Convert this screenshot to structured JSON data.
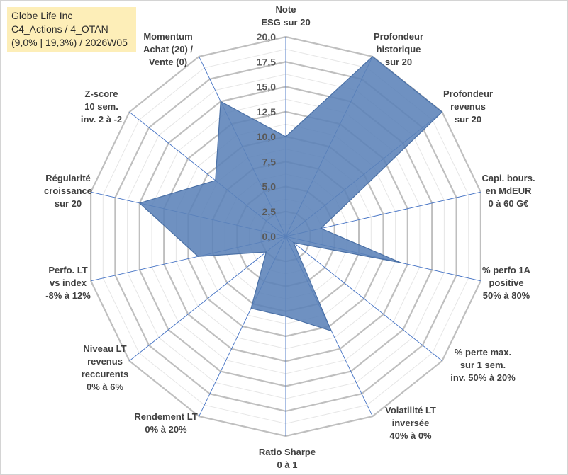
{
  "header": {
    "line1": "Globe Life Inc",
    "line2": "C4_Actions / 4_OTAN",
    "line3": "(9,0% | 19,3%) / 2026W05"
  },
  "colors": {
    "fill": "#5b82b8",
    "stroke": "#4a70a6",
    "grid_major": "#bfbfbf",
    "grid_minor": "#e6e6e6",
    "spoke": "#4472c4"
  },
  "chart_data": {
    "type": "radar",
    "rmin": 0,
    "rmax": 20,
    "ticks": [
      "0,0",
      "2,5",
      "5,0",
      "7,5",
      "10,0",
      "12,5",
      "15,0",
      "17,5",
      "20,0"
    ],
    "categories": [
      [
        "Note",
        "ESG sur 20"
      ],
      [
        "Profondeur",
        "historique",
        "sur 20"
      ],
      [
        "Profondeur",
        "revenus",
        "sur 20"
      ],
      [
        "Capi. bours.",
        "en MdEUR",
        "0 à 60 G€"
      ],
      [
        "% perfo 1A",
        "positive",
        "50% à 80%"
      ],
      [
        "% perte max.",
        "sur 1 sem.",
        "inv. 50% à 20%"
      ],
      [
        "Volatilité LT",
        "inversée",
        "40% à 0%"
      ],
      [
        "Ratio Sharpe",
        "0 à 1"
      ],
      [
        "Rendement LT",
        "0% à 20%"
      ],
      [
        "Niveau LT",
        "revenus",
        "reccurents",
        "0% à 6%"
      ],
      [
        "Perfo. LT",
        "vs index",
        "-8% à 12%"
      ],
      [
        "Régularité",
        "croissance",
        "sur 20"
      ],
      [
        "Z-score",
        "10 sem.",
        "inv. 2 à -2"
      ],
      [
        "Momentum",
        "Achat (20) /",
        "Vente (0)"
      ]
    ],
    "values": [
      10.0,
      20.0,
      20.0,
      3.6,
      11.8,
      1.0,
      10.5,
      8.0,
      8.0,
      2.5,
      9.0,
      15.0,
      9.0,
      15.0
    ]
  }
}
